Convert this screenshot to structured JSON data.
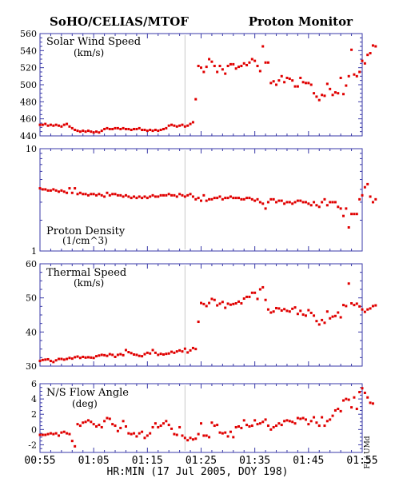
{
  "header": {
    "left_title": "SoHO/CELIAS/MTOF",
    "right_title": "Proton Monitor"
  },
  "credit": "FI / UMd",
  "chart_data": [
    {
      "type": "scatter",
      "label": "Solar Wind Speed",
      "unit": "(km/s)",
      "scale": "linear",
      "ylim": [
        440,
        560
      ],
      "yticks": [
        440,
        460,
        480,
        500,
        520,
        540,
        560
      ],
      "ytick_labels": [
        "440",
        "460",
        "480",
        "500",
        "520",
        "540",
        "560"
      ],
      "x_start": "00:55",
      "x_step_minutes": 0.5,
      "values": [
        453,
        453,
        454,
        452,
        453,
        452,
        453,
        452,
        451,
        453,
        454,
        451,
        449,
        447,
        446,
        445,
        446,
        445,
        446,
        445,
        444,
        445,
        444,
        446,
        448,
        449,
        448,
        448,
        449,
        449,
        448,
        449,
        448,
        448,
        447,
        448,
        448,
        449,
        447,
        447,
        446,
        447,
        446,
        447,
        446,
        447,
        448,
        449,
        452,
        453,
        452,
        451,
        452,
        453,
        451,
        452,
        454,
        456,
        483,
        522,
        520,
        515,
        521,
        530,
        527,
        522,
        515,
        522,
        518,
        513,
        522,
        524,
        524,
        519,
        521,
        522,
        525,
        523,
        526,
        530,
        528,
        522,
        516,
        545,
        526,
        526,
        502,
        504,
        500,
        505,
        510,
        503,
        508,
        507,
        505,
        498,
        498,
        508,
        503,
        502,
        502,
        500,
        490,
        486,
        482,
        488,
        487,
        501,
        495,
        488,
        491,
        490,
        508,
        489,
        499,
        510,
        541,
        512,
        510,
        515,
        528,
        525,
        535,
        537,
        546,
        545
      ]
    },
    {
      "type": "scatter",
      "label": "Proton Density",
      "unit": "(1/cm^3)",
      "scale": "log",
      "ylim": [
        1,
        10
      ],
      "yticks": [
        1,
        10
      ],
      "ytick_labels": [
        "1",
        "10"
      ],
      "x_start": "00:55",
      "x_step_minutes": 0.5,
      "values": [
        4.1,
        4.0,
        4.0,
        3.9,
        3.9,
        4.0,
        3.9,
        3.8,
        3.9,
        3.8,
        3.7,
        4.1,
        3.7,
        4.1,
        3.6,
        3.7,
        3.6,
        3.6,
        3.5,
        3.6,
        3.6,
        3.5,
        3.6,
        3.5,
        3.4,
        3.7,
        3.5,
        3.6,
        3.6,
        3.5,
        3.5,
        3.4,
        3.5,
        3.4,
        3.3,
        3.4,
        3.3,
        3.4,
        3.3,
        3.4,
        3.3,
        3.4,
        3.5,
        3.4,
        3.4,
        3.5,
        3.5,
        3.5,
        3.6,
        3.5,
        3.5,
        3.4,
        3.6,
        3.5,
        3.4,
        3.5,
        3.6,
        3.4,
        3.2,
        3.3,
        3.1,
        3.5,
        3.1,
        3.2,
        3.2,
        3.3,
        3.3,
        3.4,
        3.2,
        3.3,
        3.3,
        3.4,
        3.3,
        3.3,
        3.3,
        3.2,
        3.2,
        3.3,
        3.3,
        3.2,
        3.1,
        3.2,
        3.0,
        2.9,
        2.6,
        3.0,
        3.2,
        3.2,
        3.0,
        3.1,
        3.1,
        2.9,
        3.0,
        3.0,
        2.9,
        3.0,
        3.1,
        3.1,
        3.0,
        3.0,
        2.9,
        2.8,
        3.0,
        2.8,
        2.7,
        3.0,
        3.2,
        2.8,
        3.0,
        3.0,
        3.0,
        2.7,
        2.6,
        2.2,
        2.6,
        1.7,
        2.3,
        2.3,
        2.3,
        3.2,
        3.5,
        4.2,
        4.5,
        3.4,
        3.0,
        3.2
      ]
    },
    {
      "type": "scatter",
      "label": "Thermal Speed",
      "unit": "(km/s)",
      "scale": "linear",
      "ylim": [
        30,
        60
      ],
      "yticks": [
        30,
        40,
        50,
        60
      ],
      "ytick_labels": [
        "30",
        "40",
        "50",
        "60"
      ],
      "x_start": "00:55",
      "x_step_minutes": 0.5,
      "values": [
        31.5,
        31.8,
        31.9,
        32.0,
        31.5,
        31.2,
        31.7,
        32.1,
        32.1,
        31.9,
        32.1,
        32.4,
        32.2,
        32.6,
        32.8,
        32.4,
        32.7,
        32.5,
        32.6,
        32.5,
        32.4,
        32.9,
        33.1,
        33.3,
        33.2,
        33.0,
        33.5,
        33.3,
        32.7,
        33.3,
        33.5,
        33.2,
        34.7,
        34.1,
        33.8,
        33.4,
        33.3,
        33.0,
        32.9,
        33.5,
        33.9,
        33.7,
        34.7,
        33.9,
        33.3,
        33.6,
        33.4,
        33.6,
        33.7,
        34.2,
        33.9,
        34.3,
        34.6,
        34.3,
        35.1,
        34.0,
        34.6,
        35.3,
        35.0,
        43.0,
        48.5,
        48.2,
        47.6,
        48.5,
        49.7,
        49.4,
        47.8,
        48.3,
        48.8,
        47.1,
        48.3,
        48.0,
        48.2,
        48.4,
        48.9,
        48.4,
        49.8,
        50.3,
        50.3,
        51.5,
        51.5,
        49.7,
        52.5,
        53.1,
        49.4,
        46.6,
        45.7,
        46.0,
        47.0,
        46.9,
        46.3,
        46.7,
        46.2,
        46.0,
        46.8,
        47.2,
        45.3,
        46.2,
        45.1,
        44.8,
        46.4,
        45.6,
        44.8,
        43.2,
        42.2,
        43.5,
        42.7,
        46.0,
        44.0,
        44.5,
        44.7,
        45.7,
        44.3,
        47.9,
        47.6,
        54.2,
        48.4,
        47.9,
        48.3,
        47.5,
        46.6,
        45.9,
        46.6,
        46.9,
        47.6,
        47.8
      ]
    },
    {
      "type": "scatter",
      "label": "N/S Flow Angle",
      "unit": "(deg)",
      "scale": "linear",
      "ylim": [
        -3,
        6
      ],
      "yticks": [
        -2,
        0,
        2,
        4,
        6
      ],
      "ytick_labels": [
        "-2",
        "0",
        "2",
        "4",
        "6"
      ],
      "x_start": "00:55",
      "x_step_minutes": 0.5,
      "values": [
        -0.7,
        -0.7,
        -0.7,
        -0.6,
        -0.5,
        -0.6,
        -0.5,
        -0.8,
        -0.4,
        -0.3,
        -0.5,
        -0.6,
        -1.5,
        -2.2,
        0.7,
        0.5,
        0.9,
        1.0,
        1.2,
        1.0,
        0.7,
        0.4,
        0.6,
        0.3,
        1.1,
        1.5,
        1.4,
        0.7,
        0.5,
        -0.2,
        0.2,
        1.1,
        0.4,
        -0.5,
        -0.6,
        -0.5,
        -0.9,
        -0.5,
        -0.3,
        -1.1,
        -0.8,
        -0.5,
        0.3,
        0.8,
        0.3,
        0.5,
        0.8,
        1.1,
        0.6,
        0.1,
        -0.6,
        -0.7,
        0.3,
        -0.8,
        -1.1,
        -1.4,
        -1.1,
        -1.3,
        -1.2,
        -0.6,
        0.8,
        -0.8,
        -0.8,
        -1.0,
        0.9,
        0.5,
        0.6,
        -0.4,
        -0.5,
        -0.4,
        -0.9,
        -0.3,
        -1.0,
        0.3,
        0.4,
        0.2,
        1.2,
        0.6,
        0.4,
        0.5,
        1.2,
        0.7,
        0.8,
        1.0,
        1.3,
        0.5,
        0.0,
        0.3,
        0.5,
        0.8,
        0.6,
        1.1,
        1.2,
        1.1,
        1.0,
        0.8,
        1.5,
        1.4,
        1.5,
        1.3,
        0.7,
        1.1,
        1.6,
        0.9,
        0.5,
        1.6,
        0.5,
        1.1,
        1.3,
        1.8,
        2.5,
        2.7,
        2.4,
        3.8,
        4.0,
        3.9,
        2.9,
        4.2,
        2.7,
        4.9,
        5.4,
        4.8,
        4.2,
        3.5,
        3.4
      ]
    }
  ],
  "x_axis": {
    "ticks": [
      "00:55",
      "01:05",
      "01:15",
      "01:25",
      "01:35",
      "01:45",
      "01:55"
    ],
    "label": "HR:MIN (17 Jul 2005, DOY 198)",
    "range_minutes": [
      0,
      60
    ],
    "marker_time": "01:22"
  }
}
